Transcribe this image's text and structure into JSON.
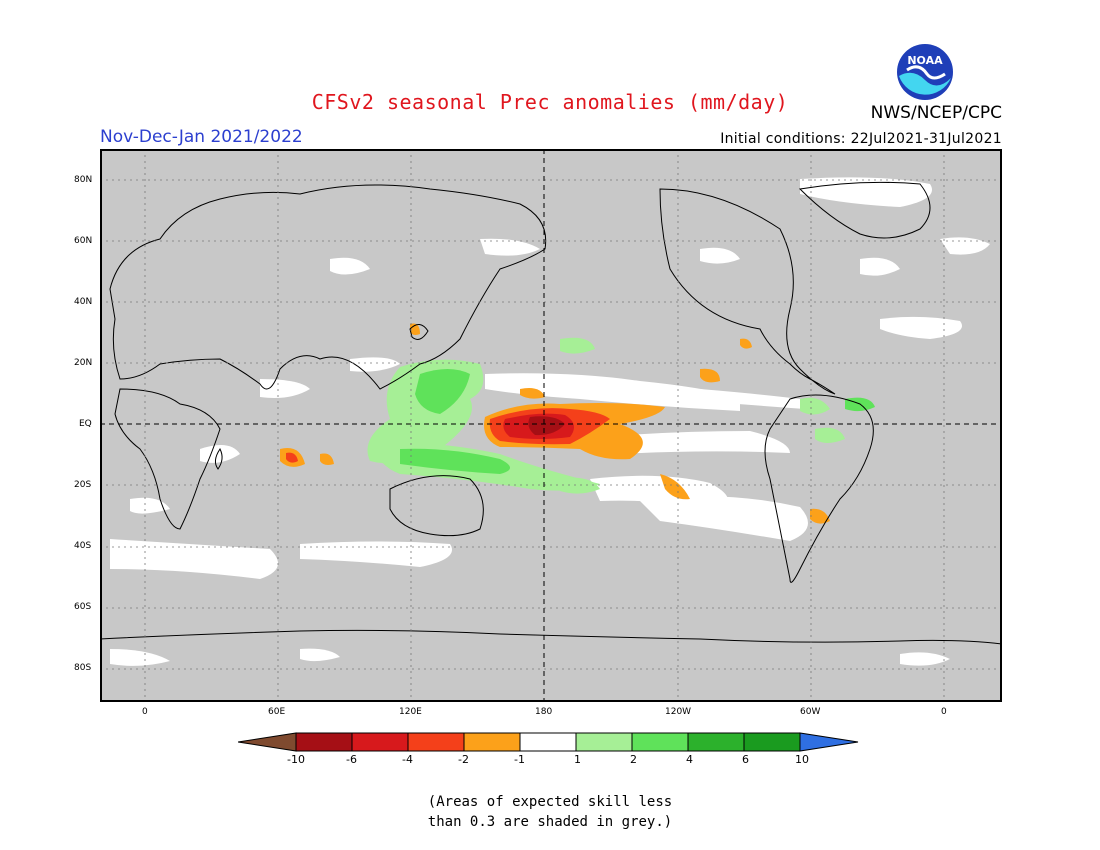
{
  "header": {
    "title": "CFSv2 seasonal Prec anomalies (mm/day)",
    "period": "Nov-Dec-Jan 2021/2022",
    "initial_conditions": "Initial conditions: 22Jul2021-31Jul2021",
    "agency": "NWS/NCEP/CPC",
    "logo_text": "NOAA"
  },
  "map": {
    "lat_labels": [
      "80N",
      "60N",
      "40N",
      "20N",
      "EQ",
      "20S",
      "40S",
      "60S",
      "80S"
    ],
    "lon_labels": [
      "0",
      "60E",
      "120E",
      "180",
      "120W",
      "60W",
      "0"
    ],
    "background_color": "#c8c8c8"
  },
  "colorbar": {
    "tick_labels": [
      "-10",
      "-6",
      "-4",
      "-2",
      "-1",
      "1",
      "2",
      "4",
      "6",
      "10"
    ],
    "colors": [
      "#7f4a2f",
      "#a50f15",
      "#d7191c",
      "#f4401a",
      "#fca11a",
      "#ffffff",
      "#a6ef96",
      "#5fe25a",
      "#2cb12c",
      "#1a9b1f",
      "#2f6fe2"
    ]
  },
  "legend_note": {
    "line1": "(Areas of expected skill less",
    "line2": "than 0.3 are shaded in grey.)"
  }
}
